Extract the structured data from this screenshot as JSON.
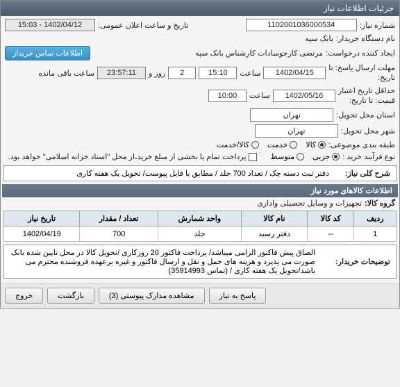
{
  "title": "جزئیات اطلاعات نیاز",
  "need_no_label": "شماره نیاز:",
  "need_no": "1102001036000534",
  "announce_label": "تاریخ و ساعت اعلان عمومی:",
  "announce_value": "1402/04/12 - 15:03",
  "buyer_org_label": "نام دستگاه خریدار:",
  "buyer_org": "بانک سپه",
  "requester_label": "ایجاد کننده درخواست:",
  "requester": "مرتضی کارجوسادات کارشناس بانک سپه",
  "contact_btn": "اطلاعات تماس خریدار",
  "deadline_label_1": "مهلت ارسال پاسخ: تا",
  "deadline_label_2": "تاریخ:",
  "deadline_date": "1402/04/15",
  "time_label": "ساعت",
  "deadline_time": "15:10",
  "days_remain": "2",
  "days_label": "روز و",
  "remain_time": "23:57:11",
  "remain_label": "ساعت باقی مانده",
  "validity_label_1": "حداقل تاریخ اعتبار",
  "validity_label_2": "قیمت: تا تاریخ:",
  "validity_date": "1402/05/16",
  "validity_time": "10:00",
  "deliver_city_label": "استان محل تحویل:",
  "deliver_city": "تهران",
  "deliver_town_label": "شهر محل تحویل:",
  "deliver_town": "تهران",
  "category_label": "طبقه بندی موضوعی:",
  "cat_goods": "کالا",
  "cat_service": "خدمت",
  "cat_both": "کالا/خدمت",
  "process_label": "نوع فرآیند خرید :",
  "proc_partial": "جزیی",
  "proc_medium": "متوسط",
  "payment_note": "پرداخت تمام یا بخشی از مبلغ خرید،از محل \"اسناد خزانه اسلامی\" خواهد بود.",
  "summary_label": "شرح کلی نیاز:",
  "summary_text": "دفتر ثبت دسته چک / تعداد 700 جلد / مطابق با فایل پیوست/ تحویل یک هفته کاری",
  "items_header": "اطلاعات کالاهای مورد نیاز",
  "group_label": "گروه کالا:",
  "group_value": "تجهیزات و وسایل تحصیلی واداری",
  "tbl": {
    "cols": [
      "ردیف",
      "کد کالا",
      "نام کالا",
      "واحد شمارش",
      "تعداد / مقدار",
      "تاریخ نیاز"
    ],
    "rows": [
      [
        "1",
        "--",
        "دفتر رسید",
        "جلد",
        "700",
        "1402/04/19"
      ]
    ]
  },
  "buyer_notes_label": "توضیحات خریدار:",
  "buyer_notes": "الصاق پیش فاکتور الزامی میباشد/ پرداخت فاکتور 20 روزکاری /تحویل کالا در محل تایین شده بانک صورت می پذیرد و هزینه های حمل و نقل و ارسال فاکتور و غیره برعهده فروشنده محترم می باشد/تحویل یک هفته کاری / (تماس 35914993)",
  "btn_reply": "پاسخ به نیاز",
  "btn_attach": "مشاهده مدارک پیوستی (3)",
  "btn_back": "بازگشت",
  "btn_exit": "خروج"
}
